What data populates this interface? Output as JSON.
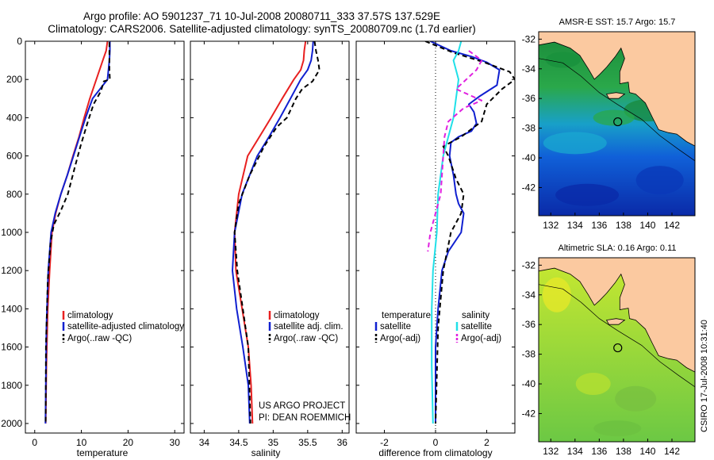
{
  "header": {
    "title_line1": "Argo profile: AO 5901237_71 10-Jul-2008 20080711_333 37.57S 137.529E",
    "title_line2": "Climatology: CARS2006. Satellite-adjusted climatology: synTS_20080709.nc (1.7d earlier)"
  },
  "footer": {
    "project": "US ARGO PROJECT",
    "pi": "PI: DEAN ROEMMICH",
    "stamp": "CSIRO 17-Jul-2008 10:31:40"
  },
  "colors": {
    "climatology": "#e82020",
    "satellite": "#1020d0",
    "argo": "#000000",
    "sal_satellite": "#20e0e8",
    "sal_argo": "#e020e0",
    "land": "#fbc9a0",
    "coast": "#000000"
  },
  "chart_data": [
    {
      "type": "line",
      "title": "",
      "xlabel": "temperature",
      "ylabel": "",
      "xlim": [
        -2,
        32
      ],
      "ylim": [
        2050,
        0
      ],
      "xticks": [
        "0",
        "10",
        "20",
        "30"
      ],
      "yticks": [
        "0",
        "200",
        "400",
        "600",
        "800",
        "1000",
        "1200",
        "1400",
        "1600",
        "1800",
        "2000"
      ],
      "legend": [
        "climatology",
        "satellite-adjusted climatology",
        "Argo(..raw -QC)"
      ],
      "series": [
        {
          "name": "climatology",
          "x": [
            15.6,
            15.3,
            14.6,
            13.2,
            11.8,
            10.6,
            9.5,
            8.2,
            7.0,
            5.6,
            4.5,
            3.7,
            3.2,
            2.8,
            2.5,
            2.35
          ],
          "y": [
            0,
            50,
            100,
            200,
            300,
            400,
            500,
            600,
            700,
            800,
            900,
            1000,
            1200,
            1400,
            1700,
            2000
          ]
        },
        {
          "name": "satellite-adjusted climatology",
          "x": [
            16.1,
            16.1,
            16.0,
            15.6,
            14.0,
            12.4,
            10.9,
            9.6,
            8.3,
            7.0,
            5.6,
            4.4,
            3.5,
            2.9,
            2.5,
            2.3
          ],
          "y": [
            0,
            50,
            100,
            200,
            250,
            300,
            400,
            500,
            600,
            700,
            800,
            900,
            1000,
            1200,
            1500,
            2000
          ]
        },
        {
          "name": "Argo(..raw -QC)",
          "x": [
            16.0,
            16.0,
            16.0,
            16.1,
            15.4,
            14.8,
            14.2,
            12.6,
            11.4,
            9.8,
            8.7,
            7.1,
            5.7,
            4.1,
            3.4,
            2.8,
            2.4,
            2.35
          ],
          "y": [
            5,
            50,
            150,
            200,
            205,
            210,
            260,
            330,
            420,
            550,
            650,
            800,
            880,
            960,
            1050,
            1250,
            1600,
            2000
          ]
        }
      ]
    },
    {
      "type": "line",
      "title": "",
      "xlabel": "salinity",
      "ylabel": "",
      "xlim": [
        33.8,
        36.1
      ],
      "ylim": [
        2050,
        0
      ],
      "xticks": [
        "34",
        "34.5",
        "35",
        "35.5",
        "36"
      ],
      "yticks": [],
      "legend": [
        "climatology",
        "satellite adj. clim.",
        "Argo(..raw -QC)"
      ],
      "series": [
        {
          "name": "climatology",
          "x": [
            35.47,
            35.45,
            35.44,
            35.4,
            35.3,
            35.13,
            34.97,
            34.8,
            34.63,
            34.5,
            34.44,
            34.46,
            34.55,
            34.64,
            34.68,
            34.7
          ],
          "y": [
            0,
            50,
            100,
            150,
            200,
            300,
            400,
            500,
            600,
            800,
            1000,
            1200,
            1400,
            1600,
            1800,
            2000
          ]
        },
        {
          "name": "satellite adj. clim.",
          "x": [
            35.58,
            35.57,
            35.55,
            35.5,
            35.4,
            35.25,
            35.1,
            34.94,
            34.77,
            34.55,
            34.44,
            34.41,
            34.47,
            34.56,
            34.64,
            34.66
          ],
          "y": [
            0,
            50,
            100,
            150,
            200,
            300,
            400,
            500,
            600,
            800,
            1000,
            1200,
            1400,
            1600,
            1800,
            2000
          ]
        },
        {
          "name": "Argo(..raw -QC)",
          "x": [
            35.6,
            35.62,
            35.65,
            35.67,
            35.57,
            35.42,
            35.33,
            35.2,
            35.05,
            34.87,
            34.66,
            34.5,
            34.44,
            34.48,
            34.56,
            34.64,
            34.67
          ],
          "y": [
            0,
            50,
            100,
            150,
            210,
            250,
            300,
            400,
            450,
            550,
            700,
            850,
            1000,
            1200,
            1400,
            1600,
            2000
          ]
        }
      ]
    },
    {
      "type": "line",
      "title": "",
      "xlabel": "difference from climatology",
      "ylabel": "",
      "xlim": [
        -3.1,
        3.1
      ],
      "ylim": [
        2050,
        0
      ],
      "xticks": [
        "-2",
        "0",
        "2"
      ],
      "yticks": [],
      "legend": [
        "temperature",
        "satellite",
        "Argo(-adj)",
        "salinity",
        "satellite",
        "Argo(-adj)"
      ],
      "series": [
        {
          "name": "temperature satellite",
          "x": [
            -0.2,
            0.6,
            1.4,
            2.0,
            2.5,
            2.4,
            1.7,
            1.3,
            1.5,
            1.6,
            1.4,
            0.9,
            0.6,
            0.55,
            0.7,
            0.8,
            0.9,
            1.1,
            1.0,
            0.5,
            0.25,
            0.1,
            0.0,
            0.0,
            0.0
          ],
          "y": [
            0,
            50,
            80,
            110,
            150,
            230,
            290,
            330,
            370,
            430,
            470,
            500,
            530,
            600,
            700,
            800,
            850,
            900,
            1000,
            1100,
            1200,
            1400,
            1600,
            1800,
            2000
          ]
        },
        {
          "name": "temperature Argo(-adj)",
          "x": [
            -0.4,
            0.7,
            1.9,
            2.9,
            3.1,
            2.6,
            2.0,
            1.8,
            1.0,
            0.3,
            0.5,
            0.8,
            1.1,
            1.0,
            0.6,
            0.3,
            0.1,
            0.0
          ],
          "y": [
            0,
            60,
            110,
            160,
            200,
            250,
            330,
            420,
            500,
            550,
            600,
            720,
            800,
            900,
            1000,
            1200,
            1500,
            2000
          ]
        },
        {
          "name": "salinity satellite",
          "x": [
            1.0,
            0.9,
            0.7,
            0.9,
            0.8,
            0.7,
            0.5,
            0.3,
            0.2,
            0.1,
            0.05,
            -0.1,
            -0.15,
            -0.15,
            -0.1
          ],
          "y": [
            0,
            50,
            100,
            200,
            300,
            400,
            500,
            600,
            700,
            800,
            1000,
            1200,
            1400,
            1700,
            2000
          ]
        },
        {
          "name": "salinity Argo(-adj)",
          "x": [
            1.3,
            1.8,
            1.6,
            1.2,
            0.8,
            1.8,
            1.1,
            0.5,
            0.35,
            0.3,
            0.2,
            0.0,
            -0.2,
            -0.3
          ],
          "y": [
            50,
            100,
            150,
            200,
            250,
            310,
            350,
            420,
            500,
            600,
            800,
            900,
            1000,
            1100
          ]
        }
      ]
    },
    {
      "type": "heatmap",
      "title": "AMSR-E SST: 15.7 Argo: 15.7",
      "xlabel": "",
      "ylabel": "",
      "xlim": [
        131,
        143.9
      ],
      "ylim": [
        -43.9,
        -31.5
      ],
      "xticks": [
        "132",
        "134",
        "136",
        "138",
        "140",
        "142"
      ],
      "yticks": [
        "-32",
        "-34",
        "-36",
        "-38",
        "-40",
        "-42"
      ],
      "marker": {
        "lon": 137.53,
        "lat": -37.57
      }
    },
    {
      "type": "heatmap",
      "title": "Altimetric SLA: 0.16 Argo: 0.11",
      "xlabel": "",
      "ylabel": "",
      "xlim": [
        131,
        143.9
      ],
      "ylim": [
        -43.9,
        -31.5
      ],
      "xticks": [
        "132",
        "134",
        "136",
        "138",
        "140",
        "142"
      ],
      "yticks": [
        "-32",
        "-34",
        "-36",
        "-38",
        "-40",
        "-42"
      ],
      "marker": {
        "lon": 137.53,
        "lat": -37.57
      }
    }
  ]
}
